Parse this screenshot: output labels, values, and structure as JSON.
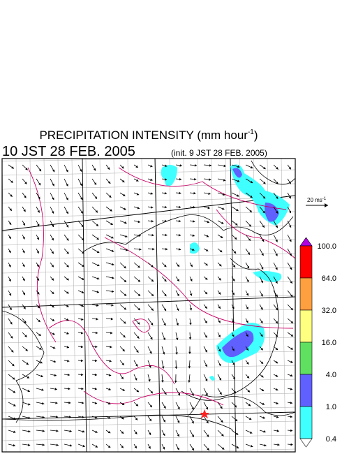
{
  "title": {
    "text": "PRECIPITATION INTENSITY (mm hour",
    "exponent": "-1",
    "close": ")"
  },
  "valid_time": "10 JST 28 FEB. 2005",
  "init_time": "(init. 9 JST 28 FEB. 2005)",
  "wind_scale": {
    "text": "20 ms",
    "exponent": "-1"
  },
  "colorbar": {
    "ticks": [
      {
        "value": 100,
        "label": "100.0"
      },
      {
        "value": 64,
        "label": "64.0"
      },
      {
        "value": 32,
        "label": "32.0"
      },
      {
        "value": 16,
        "label": "16.0"
      },
      {
        "value": 4,
        "label": "4.0"
      },
      {
        "value": 1,
        "label": "1.0"
      },
      {
        "value": 0.4,
        "label": "0.4"
      }
    ],
    "colors": [
      "#b000e0",
      "#ff0000",
      "#ffa040",
      "#ffff80",
      "#60e060",
      "#6060ff",
      "#40ffff",
      "#ffffff"
    ]
  }
}
